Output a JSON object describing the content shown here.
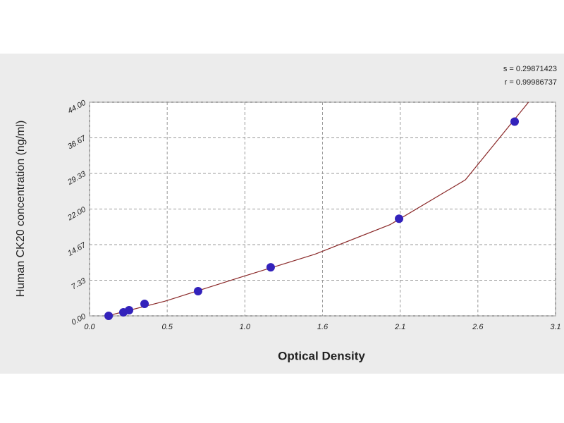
{
  "chart_data": {
    "type": "scatter",
    "x_label": "Optical Density",
    "y_label": "Human CK20 concentration (ng/ml)",
    "annotations": [
      "s = 0.29871423",
      "r = 0.99986737"
    ],
    "x": [
      0.127,
      0.225,
      0.263,
      0.366,
      0.722,
      1.205,
      2.059,
      2.828
    ],
    "series": [
      {
        "color": "#3322bb",
        "values": [
          0,
          0.73,
          1.16,
          2.47,
          5.08,
          10.0,
          20.0,
          40.0
        ]
      }
    ],
    "fit": {
      "color": "#8b2a2a",
      "x": [
        0.12,
        0.5,
        1.0,
        1.5,
        2.0,
        2.5,
        2.92
      ],
      "values": [
        0,
        3.0,
        7.9,
        12.7,
        18.8,
        28.0,
        44.0
      ]
    },
    "xlim": [
      0,
      3.1
    ],
    "ylim": [
      0,
      44
    ],
    "xticks": [
      {
        "value": 0,
        "label": "0.0"
      },
      {
        "value": 0.5167,
        "label": "0.5"
      },
      {
        "value": 1.0333,
        "label": "1.0"
      },
      {
        "value": 1.55,
        "label": "1.6"
      },
      {
        "value": 2.0667,
        "label": "2.1"
      },
      {
        "value": 2.5833,
        "label": "2.6"
      },
      {
        "value": 3.1,
        "label": "3.1"
      }
    ],
    "yticks": [
      {
        "value": 0,
        "label": "0.00"
      },
      {
        "value": 7.3333,
        "label": "7.33"
      },
      {
        "value": 14.6667,
        "label": "14.67"
      },
      {
        "value": 22,
        "label": "22.00"
      },
      {
        "value": 29.3333,
        "label": "29.33"
      },
      {
        "value": 36.6667,
        "label": "36.67"
      },
      {
        "value": 44,
        "label": "44.00"
      }
    ],
    "grid": true
  }
}
